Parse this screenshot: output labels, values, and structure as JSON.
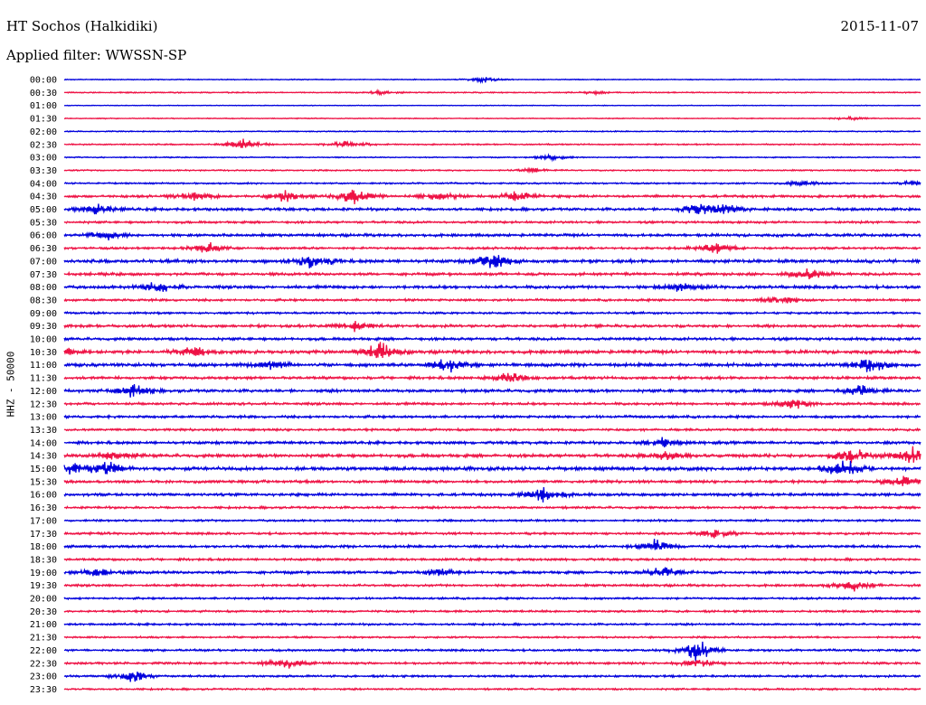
{
  "header": {
    "station": "HT Sochos (Halkidiki)",
    "date": "2015-11-07",
    "filter": "Applied filter: WWSSN-SP",
    "channel": "HHZ - 50000"
  },
  "chart_data": {
    "type": "line",
    "title": "HT Sochos (Halkidiki)",
    "subtitle": "Applied filter: WWSSN-SP",
    "ylabel": "HHZ - 50000",
    "colors": [
      "#0000dd",
      "#ee1144"
    ],
    "rows": [
      {
        "time": "00:00",
        "level": 0.4,
        "events": [
          [
            0.49,
            0.8
          ]
        ]
      },
      {
        "time": "00:30",
        "level": 0.5,
        "events": [
          [
            0.37,
            0.6
          ],
          [
            0.62,
            0.5
          ]
        ]
      },
      {
        "time": "01:00",
        "level": 0.3,
        "events": []
      },
      {
        "time": "01:30",
        "level": 0.4,
        "events": [
          [
            0.92,
            0.5
          ]
        ]
      },
      {
        "time": "02:00",
        "level": 0.5,
        "events": []
      },
      {
        "time": "02:30",
        "level": 0.6,
        "events": [
          [
            0.21,
            1.6
          ],
          [
            0.33,
            1.0
          ]
        ]
      },
      {
        "time": "03:00",
        "level": 0.5,
        "events": [
          [
            0.57,
            0.8
          ]
        ]
      },
      {
        "time": "03:30",
        "level": 0.6,
        "events": [
          [
            0.55,
            0.6
          ]
        ]
      },
      {
        "time": "04:00",
        "level": 0.7,
        "events": [
          [
            0.86,
            0.8
          ],
          [
            0.99,
            0.7
          ]
        ]
      },
      {
        "time": "04:30",
        "level": 1.1,
        "events": [
          [
            0.15,
            1.2
          ],
          [
            0.26,
            1.6
          ],
          [
            0.34,
            2.6
          ],
          [
            0.44,
            1.2
          ],
          [
            0.53,
            1.5
          ]
        ]
      },
      {
        "time": "05:00",
        "level": 1.2,
        "events": [
          [
            0.04,
            1.6
          ],
          [
            0.74,
            1.5
          ],
          [
            0.77,
            2.0
          ]
        ]
      },
      {
        "time": "05:30",
        "level": 1.0,
        "events": []
      },
      {
        "time": "06:00",
        "level": 1.2,
        "events": [
          [
            0.05,
            1.2
          ]
        ]
      },
      {
        "time": "06:30",
        "level": 1.0,
        "events": [
          [
            0.17,
            1.5
          ],
          [
            0.76,
            1.6
          ]
        ]
      },
      {
        "time": "07:00",
        "level": 1.4,
        "events": [
          [
            0.29,
            2.2
          ],
          [
            0.5,
            2.8
          ]
        ]
      },
      {
        "time": "07:30",
        "level": 1.2,
        "events": [
          [
            0.87,
            1.6
          ]
        ]
      },
      {
        "time": "08:00",
        "level": 1.3,
        "events": [
          [
            0.11,
            1.5
          ],
          [
            0.72,
            1.4
          ]
        ]
      },
      {
        "time": "08:30",
        "level": 1.0,
        "events": [
          [
            0.84,
            1.4
          ]
        ]
      },
      {
        "time": "09:00",
        "level": 0.9,
        "events": []
      },
      {
        "time": "09:30",
        "level": 1.2,
        "events": [
          [
            0.34,
            1.4
          ]
        ]
      },
      {
        "time": "10:00",
        "level": 1.2,
        "events": []
      },
      {
        "time": "10:30",
        "level": 1.4,
        "events": [
          [
            0.0,
            1.6
          ],
          [
            0.15,
            1.8
          ],
          [
            0.37,
            2.6
          ]
        ]
      },
      {
        "time": "11:00",
        "level": 1.4,
        "events": [
          [
            0.24,
            1.3
          ],
          [
            0.45,
            2.6
          ],
          [
            0.94,
            2.4
          ]
        ]
      },
      {
        "time": "11:30",
        "level": 1.2,
        "events": [
          [
            0.52,
            1.5
          ]
        ]
      },
      {
        "time": "12:00",
        "level": 1.3,
        "events": [
          [
            0.08,
            2.0
          ],
          [
            0.93,
            1.8
          ]
        ]
      },
      {
        "time": "12:30",
        "level": 1.1,
        "events": [
          [
            0.85,
            1.5
          ]
        ]
      },
      {
        "time": "13:00",
        "level": 1.1,
        "events": []
      },
      {
        "time": "13:30",
        "level": 1.0,
        "events": []
      },
      {
        "time": "14:00",
        "level": 1.2,
        "events": [
          [
            0.7,
            1.5
          ]
        ]
      },
      {
        "time": "14:30",
        "level": 1.4,
        "events": [
          [
            0.06,
            1.6
          ],
          [
            0.7,
            1.8
          ],
          [
            0.92,
            2.2
          ],
          [
            0.99,
            2.4
          ]
        ]
      },
      {
        "time": "15:00",
        "level": 1.5,
        "events": [
          [
            0.01,
            2.0
          ],
          [
            0.05,
            2.0
          ],
          [
            0.91,
            3.2
          ]
        ]
      },
      {
        "time": "15:30",
        "level": 1.2,
        "events": [
          [
            0.98,
            1.8
          ]
        ]
      },
      {
        "time": "16:00",
        "level": 1.2,
        "events": [
          [
            0.56,
            2.2
          ]
        ]
      },
      {
        "time": "16:30",
        "level": 1.0,
        "events": []
      },
      {
        "time": "17:00",
        "level": 0.9,
        "events": []
      },
      {
        "time": "17:30",
        "level": 1.0,
        "events": [
          [
            0.76,
            1.3
          ]
        ]
      },
      {
        "time": "18:00",
        "level": 1.1,
        "events": [
          [
            0.69,
            1.8
          ]
        ]
      },
      {
        "time": "18:30",
        "level": 1.0,
        "events": []
      },
      {
        "time": "19:00",
        "level": 1.2,
        "events": [
          [
            0.04,
            1.3
          ],
          [
            0.44,
            1.2
          ],
          [
            0.7,
            1.6
          ]
        ]
      },
      {
        "time": "19:30",
        "level": 1.0,
        "events": [
          [
            0.92,
            1.6
          ]
        ]
      },
      {
        "time": "20:00",
        "level": 0.9,
        "events": []
      },
      {
        "time": "20:30",
        "level": 0.9,
        "events": []
      },
      {
        "time": "21:00",
        "level": 0.9,
        "events": []
      },
      {
        "time": "21:30",
        "level": 0.8,
        "events": []
      },
      {
        "time": "22:00",
        "level": 0.9,
        "events": [
          [
            0.74,
            3.2
          ]
        ]
      },
      {
        "time": "22:30",
        "level": 1.0,
        "events": [
          [
            0.26,
            1.6
          ],
          [
            0.74,
            1.0
          ]
        ]
      },
      {
        "time": "23:00",
        "level": 0.9,
        "events": [
          [
            0.08,
            1.8
          ]
        ]
      },
      {
        "time": "23:30",
        "level": 0.8,
        "events": []
      }
    ]
  }
}
